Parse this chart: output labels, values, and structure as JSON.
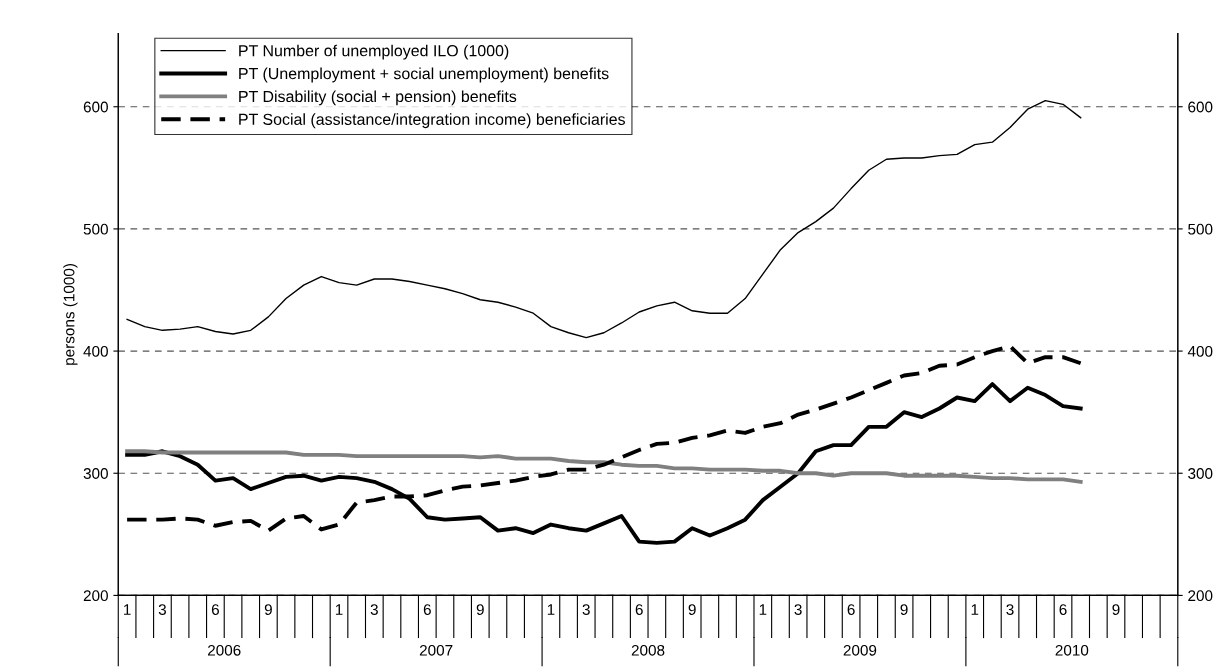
{
  "chart_data": {
    "type": "line",
    "ylabel": "persons (1000)",
    "categories": [
      "1",
      null,
      "3",
      null,
      null,
      "6",
      null,
      null,
      "9",
      null,
      null,
      null,
      "1",
      null,
      "3",
      null,
      null,
      "6",
      null,
      null,
      "9",
      null,
      null,
      null,
      "1",
      null,
      "3",
      null,
      null,
      "6",
      null,
      null,
      "9",
      null,
      null,
      null,
      "1",
      null,
      "3",
      null,
      null,
      "6",
      null,
      null,
      "9",
      null,
      null,
      null,
      "1",
      null,
      "3",
      null,
      null,
      "6",
      null,
      null,
      "9",
      null,
      null,
      null
    ],
    "annotations": [
      "2006",
      "2007",
      "2008",
      "2009",
      "2010"
    ],
    "ylim": [
      200,
      660
    ],
    "yticks": [
      200,
      300,
      400,
      500,
      600
    ],
    "y2lim": [
      200,
      660
    ],
    "y2ticks": [
      200,
      300,
      400,
      500,
      600
    ],
    "grid": "y",
    "legend": "top left",
    "marker": "none",
    "series": [
      {
        "name": "PT Number of unemployed ILO (1000)",
        "color": "#000000",
        "line_style": "solid",
        "values": [
          426,
          420,
          417,
          418,
          420,
          416,
          414,
          417,
          428,
          443,
          454,
          461,
          456,
          454,
          459,
          459,
          457,
          454,
          451,
          447,
          442,
          440,
          436,
          431,
          420,
          415,
          411,
          415,
          423,
          432,
          437,
          440,
          433,
          431,
          431,
          443,
          463,
          483,
          497,
          506,
          517,
          533,
          548,
          557,
          558,
          558,
          560,
          561,
          569,
          571,
          583,
          598,
          605,
          602,
          591,
          null,
          null,
          null,
          null,
          null
        ]
      },
      {
        "name": "PT (Unemployment + social unemployment) benefits",
        "color": "#000000",
        "line_style": "solid",
        "values": [
          315,
          315,
          318,
          314,
          307,
          294,
          296,
          287,
          292,
          297,
          298,
          294,
          297,
          296,
          293,
          287,
          279,
          264,
          262,
          263,
          264,
          253,
          255,
          251,
          258,
          255,
          253,
          259,
          265,
          244,
          243,
          244,
          255,
          249,
          255,
          262,
          278,
          289,
          300,
          318,
          323,
          323,
          338,
          338,
          350,
          346,
          353,
          362,
          359,
          373,
          359,
          370,
          364,
          355,
          353,
          null,
          null,
          null,
          null,
          null
        ]
      },
      {
        "name": "PT Disability (social + pension) benefits",
        "color": "#808080",
        "line_style": "solid",
        "values": [
          318,
          318,
          317,
          317,
          317,
          317,
          317,
          317,
          317,
          317,
          315,
          315,
          315,
          314,
          314,
          314,
          314,
          314,
          314,
          314,
          313,
          314,
          312,
          312,
          312,
          310,
          309,
          309,
          307,
          306,
          306,
          304,
          304,
          303,
          303,
          303,
          302,
          302,
          300,
          300,
          298,
          300,
          300,
          300,
          298,
          298,
          298,
          298,
          297,
          296,
          296,
          295,
          295,
          295,
          293,
          null,
          null,
          null,
          null,
          null
        ]
      },
      {
        "name": "PT Social (assistance/integration income) beneficiaries",
        "color": "#000000",
        "line_style": "dashed",
        "values": [
          262,
          262,
          262,
          263,
          262,
          257,
          260,
          261,
          253,
          263,
          265,
          254,
          258,
          276,
          278,
          281,
          281,
          282,
          286,
          289,
          290,
          292,
          294,
          297,
          299,
          303,
          303,
          307,
          313,
          319,
          324,
          325,
          329,
          331,
          335,
          333,
          338,
          341,
          348,
          352,
          357,
          362,
          368,
          374,
          380,
          382,
          388,
          389,
          395,
          400,
          404,
          390,
          395,
          395,
          390,
          null,
          null,
          null,
          null,
          null
        ]
      }
    ]
  }
}
